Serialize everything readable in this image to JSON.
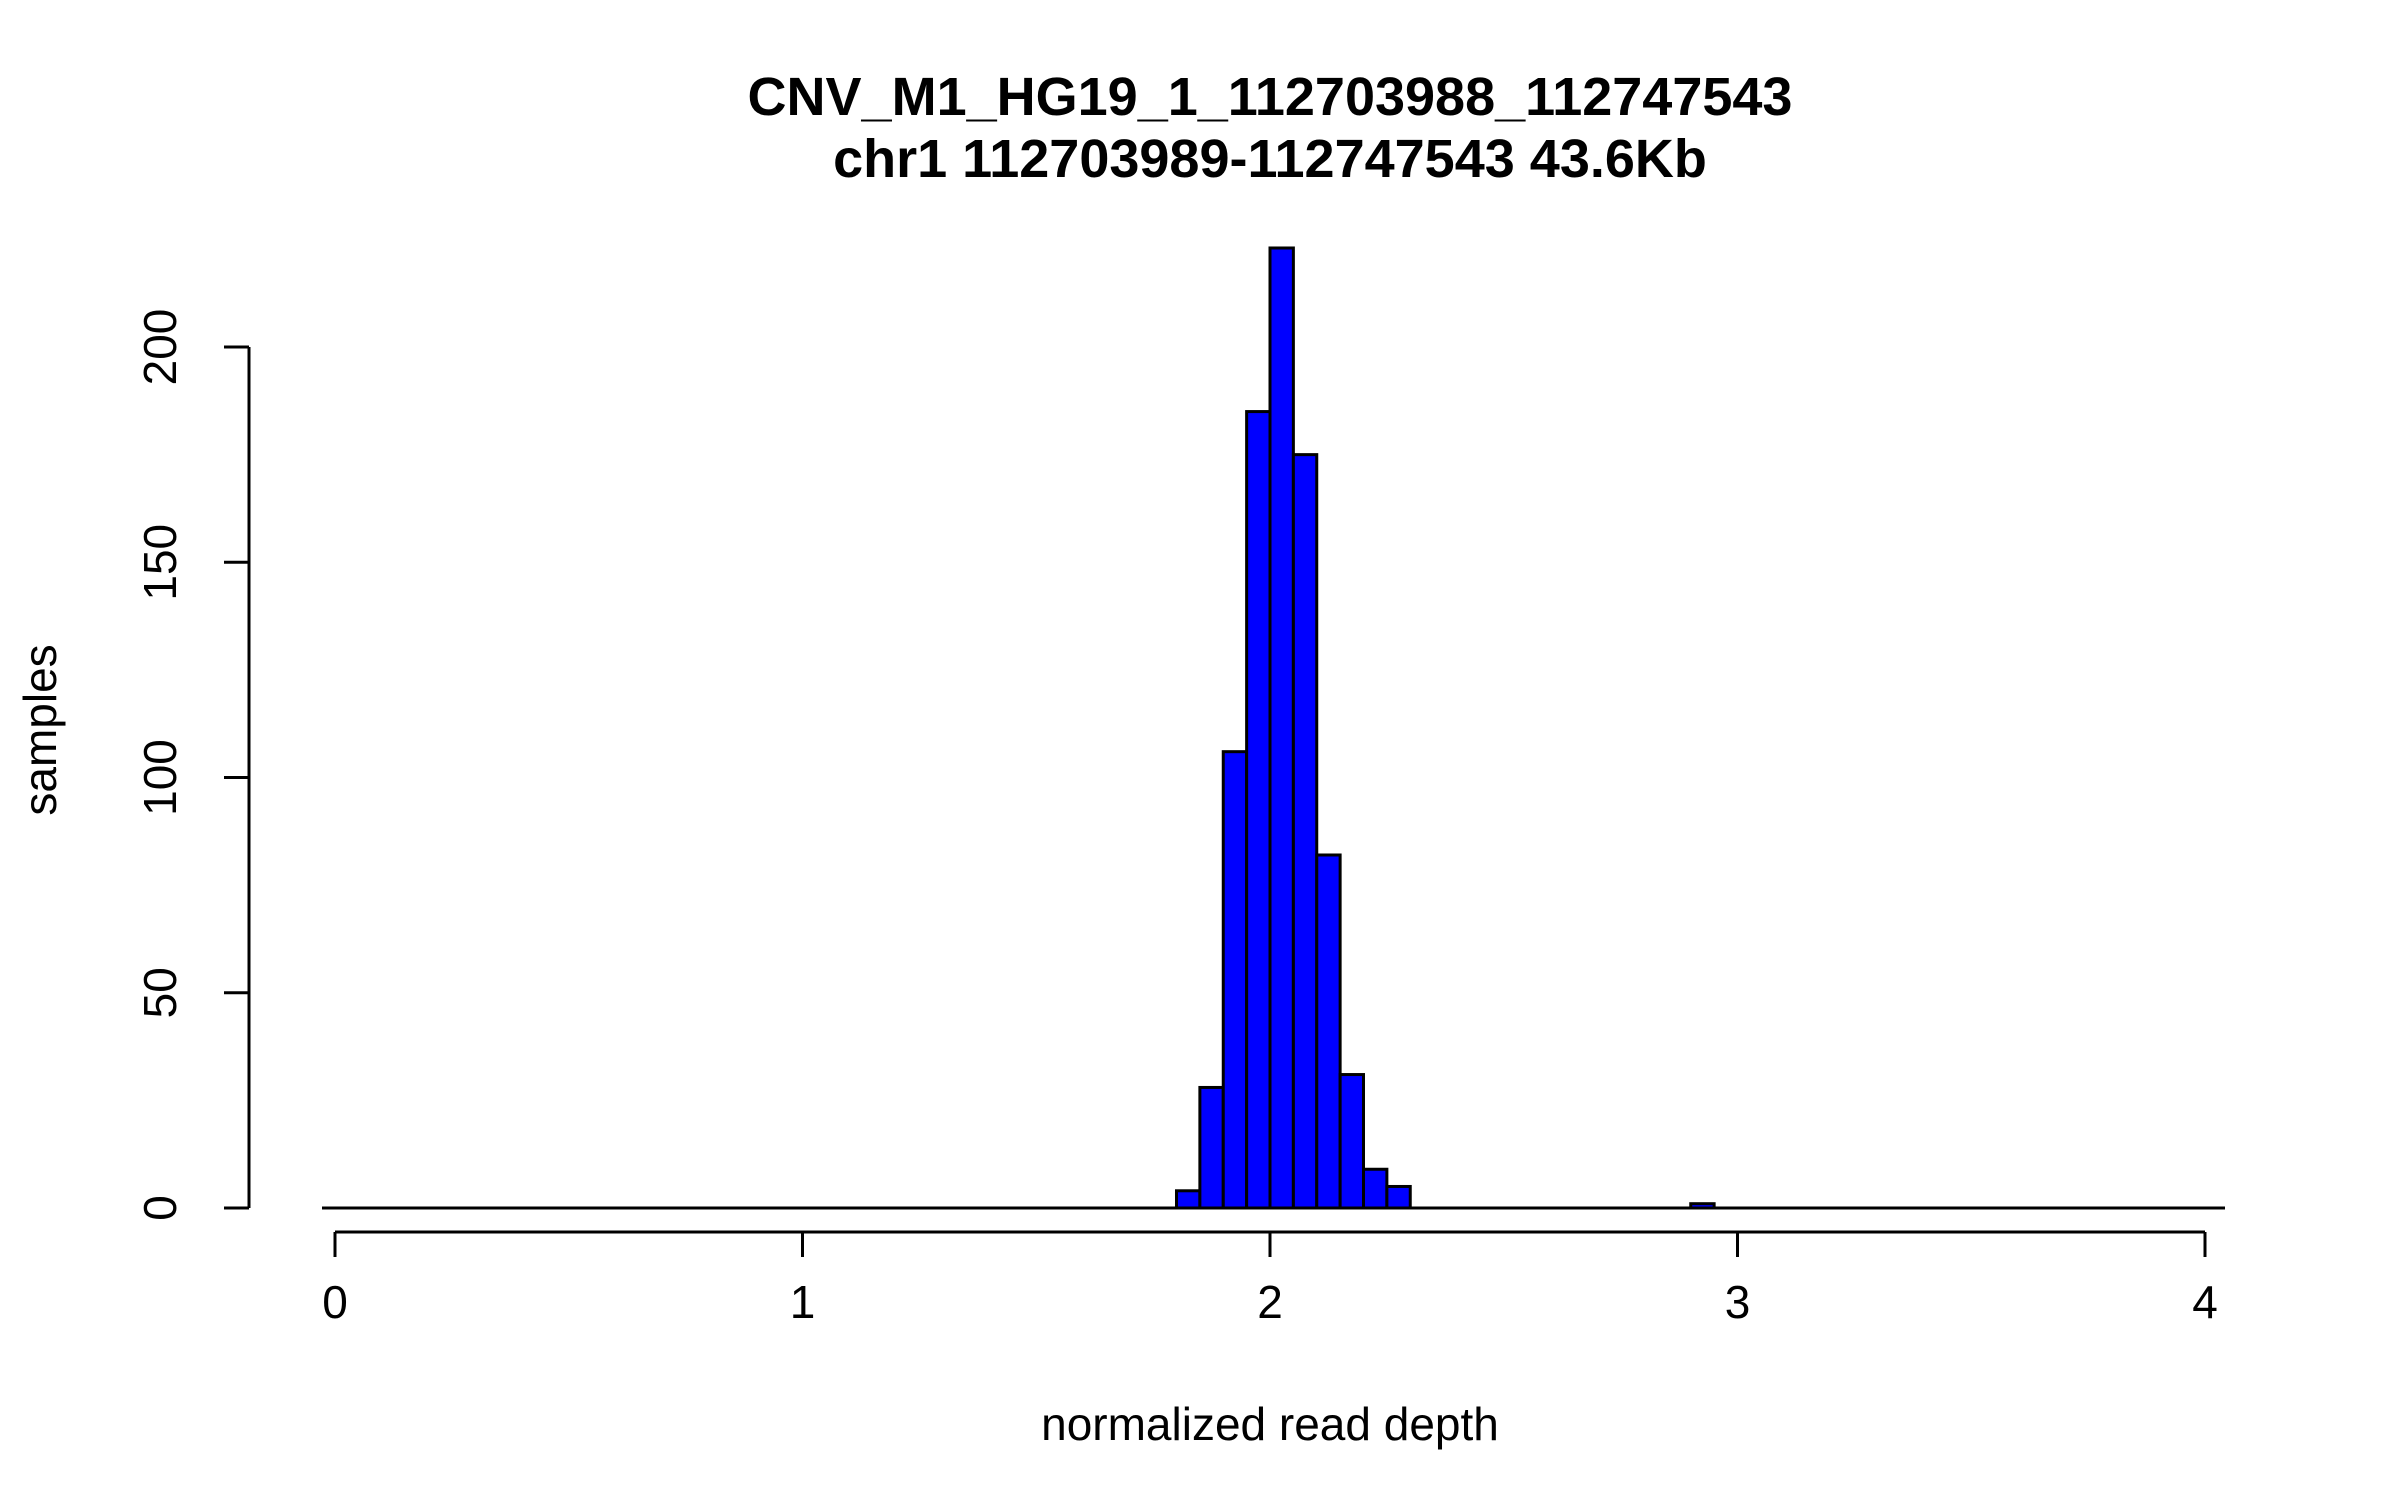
{
  "chart_data": {
    "type": "bar",
    "title": "CNV_M1_HG19_1_112703988_112747543",
    "subtitle": "chr1 112703989-112747543 43.6Kb",
    "xlabel": "normalized read depth",
    "ylabel": "samples",
    "xlim": [
      0,
      4
    ],
    "ylim": [
      0,
      200
    ],
    "xticks": [
      0,
      1,
      2,
      3,
      4
    ],
    "yticks": [
      0,
      50,
      100,
      150,
      200
    ],
    "bin_width": 0.05,
    "bar_color": "#0000ff",
    "bins": [
      {
        "x0": 1.8,
        "x1": 1.85,
        "count": 4
      },
      {
        "x0": 1.85,
        "x1": 1.9,
        "count": 28
      },
      {
        "x0": 1.9,
        "x1": 1.95,
        "count": 106
      },
      {
        "x0": 1.95,
        "x1": 2.0,
        "count": 185
      },
      {
        "x0": 2.0,
        "x1": 2.05,
        "count": 223
      },
      {
        "x0": 2.05,
        "x1": 2.1,
        "count": 175
      },
      {
        "x0": 2.1,
        "x1": 2.15,
        "count": 82
      },
      {
        "x0": 2.15,
        "x1": 2.2,
        "count": 31
      },
      {
        "x0": 2.2,
        "x1": 2.25,
        "count": 9
      },
      {
        "x0": 2.25,
        "x1": 2.3,
        "count": 5
      },
      {
        "x0": 2.9,
        "x1": 2.95,
        "count": 1
      }
    ]
  }
}
